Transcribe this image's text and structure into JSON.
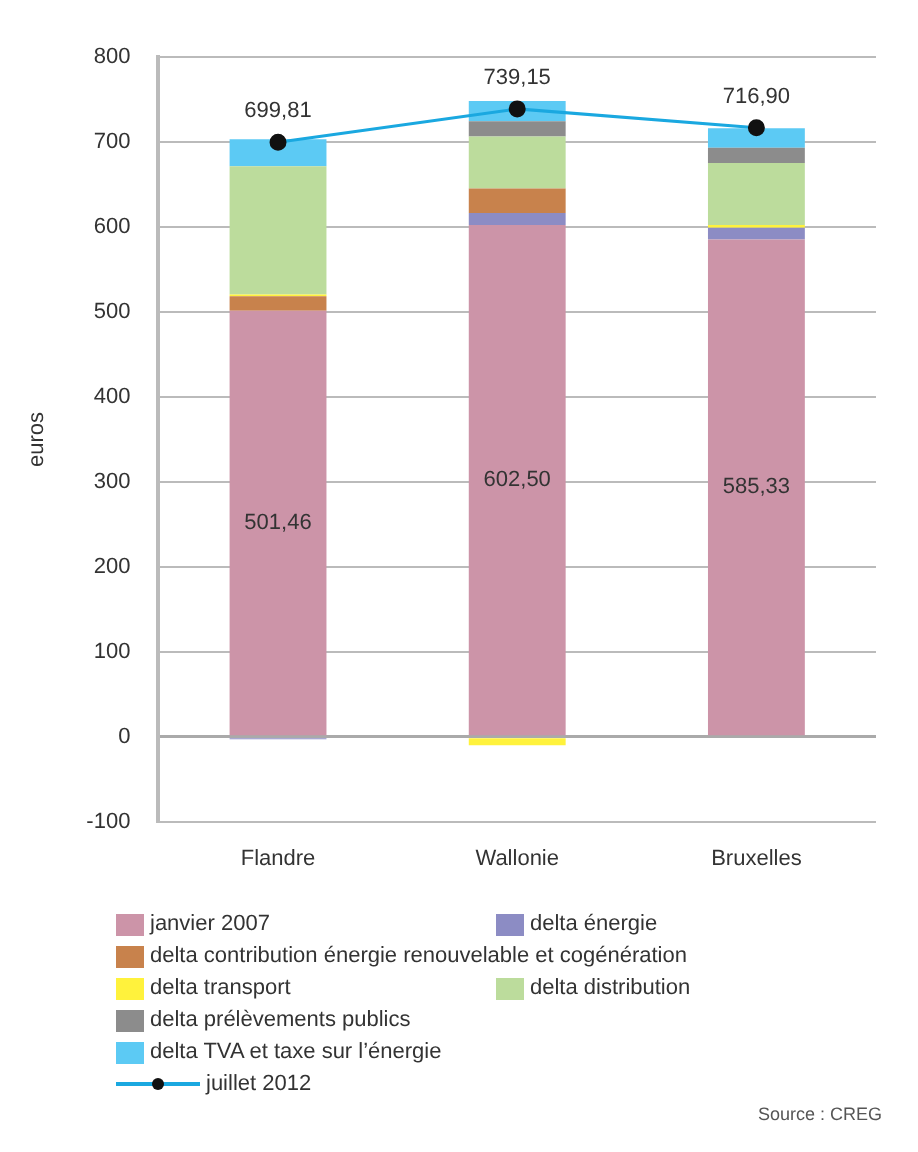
{
  "chart_data": {
    "type": "bar",
    "stacked": true,
    "ylabel": "euros",
    "categories": [
      "Flandre",
      "Wallonie",
      "Bruxelles"
    ],
    "ylim": [
      -100,
      800
    ],
    "yticks": [
      -100,
      0,
      100,
      200,
      300,
      400,
      500,
      600,
      700,
      800
    ],
    "grid": "y",
    "legend": "bottom",
    "marker": "circle",
    "series": [
      {
        "name": "janvier 2007",
        "color": "#cc94a8",
        "values": [
          501.46,
          602.5,
          585.33
        ],
        "value_labels": [
          "501,46",
          "602,50",
          "585,33"
        ]
      },
      {
        "name": "delta énergie",
        "color": "#8c8cc4",
        "values": [
          -3,
          14,
          14
        ]
      },
      {
        "name": "delta contribution énergie renouvelable et cogénération",
        "color": "#c8824c",
        "values": [
          17,
          29,
          0
        ]
      },
      {
        "name": "delta transport",
        "color": "#fff23c",
        "values": [
          2,
          -10,
          3
        ]
      },
      {
        "name": "delta distribution",
        "color": "#bcdc9c",
        "values": [
          151,
          61,
          73
        ]
      },
      {
        "name": "delta prélèvements publics",
        "color": "#8c8c8c",
        "values": [
          0,
          18,
          18
        ]
      },
      {
        "name": "delta TVA et taxe sur l’énergie",
        "color": "#5ccaf4",
        "values": [
          32,
          24,
          23
        ]
      },
      {
        "name": "juillet 2012",
        "type": "line",
        "color": "#1aa8e0",
        "values": [
          699.81,
          739.15,
          716.9
        ],
        "value_labels": [
          "699,81",
          "739,15",
          "716,90"
        ]
      }
    ],
    "annotations": [
      "Source : CREG"
    ]
  }
}
